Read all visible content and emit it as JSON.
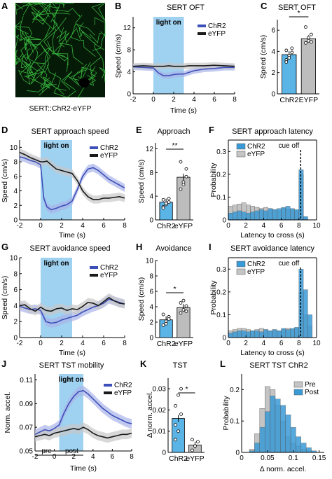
{
  "panels": {
    "A": {
      "letter": "A",
      "caption": "SERT::ChR2-eYFP"
    },
    "B": {
      "letter": "B",
      "title": "SERT OFT",
      "light": "light on",
      "xlabel": "Time (s)",
      "ylabel": "Speed (cm/s)",
      "xticks": [
        "-2",
        "0",
        "2",
        "4",
        "6",
        "8"
      ],
      "yticks": [
        "0",
        "4",
        "8",
        "12"
      ],
      "legend": [
        "ChR2",
        "eYFP"
      ]
    },
    "C": {
      "letter": "C",
      "title": "SERT OFT",
      "ylabel": "Speed (cm/s)",
      "yticks": [
        "0",
        "2",
        "4",
        "6"
      ],
      "bars": [
        "ChR2",
        "EYFP"
      ],
      "sig": "*"
    },
    "D": {
      "letter": "D",
      "title": "SERT approach speed",
      "light": "light on",
      "xlabel": "Time (s)",
      "ylabel": "Speed (cm/s)",
      "xticks": [
        "-2",
        "0",
        "2",
        "4",
        "6",
        "8"
      ],
      "yticks": [
        "0",
        "2",
        "4",
        "6",
        "8",
        "10"
      ],
      "legend": [
        "ChR2",
        "eYFP"
      ]
    },
    "E": {
      "letter": "E",
      "title": "Approach",
      "ylabel": "Speed (cm/s)",
      "yticks": [
        "0",
        "4",
        "8",
        "12"
      ],
      "bars": [
        "ChR2",
        "eYFP"
      ],
      "sig": "**"
    },
    "F": {
      "letter": "F",
      "title": "SERT approach latency",
      "xlabel": "Latency to cross (s)",
      "ylabel": "Probability",
      "xticks": [
        "0",
        "2",
        "4",
        "6",
        "8",
        "10"
      ],
      "yticks": [
        "0",
        "0.1",
        "0.2",
        "0.3"
      ],
      "legend": [
        "ChR2",
        "eYFP"
      ],
      "cue": "cue off"
    },
    "G": {
      "letter": "G",
      "title": "SERT avoidance speed",
      "light": "light on",
      "xlabel": "Time (s)",
      "ylabel": "Speed (cm/s)",
      "xticks": [
        "-2",
        "0",
        "2",
        "4",
        "6",
        "8"
      ],
      "yticks": [
        "0",
        "2",
        "4",
        "6",
        "8",
        "10"
      ],
      "legend": [
        "ChR2",
        "eYFP"
      ]
    },
    "H": {
      "letter": "H",
      "title": "Avoidance",
      "ylabel": "Speed (cm/s)",
      "yticks": [
        "0",
        "2",
        "4",
        "6",
        "8",
        "10"
      ],
      "bars": [
        "ChR2",
        "eYFP"
      ],
      "sig": "*"
    },
    "I": {
      "letter": "I",
      "title": "SERT avoidance latency",
      "xlabel": "Latency to cross (s)",
      "ylabel": "Probability",
      "xticks": [
        "0",
        "2",
        "4",
        "6",
        "8",
        "10"
      ],
      "yticks": [
        "0",
        "0.1",
        "0.2",
        "0.3"
      ],
      "legend": [
        "ChR2",
        "eYFP"
      ],
      "cue": "cue off"
    },
    "J": {
      "letter": "J",
      "title": "SERT TST mobility",
      "light": "light on",
      "xlabel": "Time (s)",
      "ylabel": "Norm. accel.",
      "xticks": [
        "-2",
        "0",
        "2",
        "4",
        "6",
        "8"
      ],
      "yticks": [
        "0.05",
        "0.07",
        "0.09",
        "0.11"
      ],
      "legend": [
        "ChR2",
        "eYFP"
      ],
      "pre": "pre",
      "post": "post"
    },
    "K": {
      "letter": "K",
      "title": "TST",
      "ylabel": "Δ norm. accel.",
      "yticks": [
        "0",
        "0.01",
        "0.02",
        "0.03"
      ],
      "bars": [
        "ChR2",
        "eYFP"
      ],
      "sig": "*"
    },
    "L": {
      "letter": "L",
      "title": "SERT TST ChR2",
      "xlabel": "Δ norm. accel.",
      "ylabel": "Probability",
      "xticks": [
        "0",
        "0.05",
        "0.1",
        "0.15"
      ],
      "yticks": [
        "0",
        "0.1",
        "0.2"
      ],
      "legend": [
        "Pre",
        "Post"
      ]
    }
  },
  "colors": {
    "chr2": "#3d4fb8",
    "eyfp": "#1a1a1a",
    "light": "#9fd1f0",
    "bar_chr2": "#5ab4e5",
    "bar_eyfp": "#bdbdbd",
    "hist_chr2": "#3a9ad6",
    "hist_eyfp": "#c4c4c4",
    "band_chr2": "#a9b3e8",
    "band_eyfp": "#c8c8c8"
  },
  "chart_data": [
    {
      "id": "B",
      "type": "line",
      "x_range": [
        -2,
        8
      ],
      "ylim": [
        0,
        14
      ],
      "light_on": [
        0,
        3
      ],
      "x": [
        -2,
        -1,
        0,
        0.5,
        1,
        1.5,
        2,
        2.5,
        3,
        3.5,
        4,
        5,
        6,
        7,
        8
      ],
      "series": [
        {
          "name": "ChR2",
          "values": [
            4.9,
            4.8,
            4.7,
            3.8,
            3.3,
            3.3,
            3.5,
            3.6,
            3.6,
            3.9,
            4.2,
            4.5,
            4.6,
            4.8,
            4.8
          ]
        },
        {
          "name": "eYFP",
          "values": [
            5.0,
            5.1,
            5.0,
            5.0,
            5.0,
            5.1,
            5.0,
            5.0,
            5.0,
            5.1,
            5.1,
            5.1,
            5.2,
            5.1,
            5.0
          ]
        }
      ]
    },
    {
      "id": "C",
      "type": "bar",
      "categories": [
        "ChR2",
        "EYFP"
      ],
      "values": [
        3.7,
        5.2
      ],
      "ylim": [
        0,
        7
      ],
      "points": [
        [
          3.2,
          3.6,
          3.9,
          4.1,
          3.4,
          4.3,
          3.0
        ],
        [
          4.8,
          5.0,
          5.6,
          6.3,
          5.3,
          4.9
        ]
      ]
    },
    {
      "id": "D",
      "type": "line",
      "x_range": [
        -2,
        8
      ],
      "ylim": [
        0,
        11
      ],
      "light_on": [
        0,
        3
      ],
      "x": [
        -2,
        -1.5,
        -1,
        -0.5,
        0,
        0.3,
        0.6,
        1,
        1.5,
        2,
        2.5,
        3,
        3.5,
        4,
        4.5,
        5,
        5.5,
        6,
        6.5,
        7,
        7.5,
        8
      ],
      "series": [
        {
          "name": "ChR2",
          "values": [
            8.7,
            8.5,
            8.2,
            8.0,
            7.6,
            3.0,
            1.8,
            1.4,
            1.6,
            1.9,
            2.1,
            2.6,
            4.2,
            6.0,
            7.0,
            7.2,
            6.8,
            6.2,
            5.6,
            5.2,
            4.8,
            4.4
          ]
        },
        {
          "name": "eYFP",
          "values": [
            9.3,
            9.0,
            8.6,
            8.3,
            8.0,
            8.0,
            8.1,
            7.6,
            7.0,
            6.8,
            6.6,
            6.4,
            5.4,
            4.0,
            3.2,
            2.8,
            2.8,
            3.0,
            3.0,
            3.1,
            3.2,
            3.0
          ]
        }
      ]
    },
    {
      "id": "E",
      "type": "bar",
      "categories": [
        "ChR2",
        "eYFP"
      ],
      "values": [
        3.0,
        7.2
      ],
      "ylim": [
        0,
        13
      ],
      "points": [
        [
          2.2,
          2.6,
          3.0,
          3.4,
          2.8,
          3.6,
          2.0
        ],
        [
          5.2,
          6.4,
          8.6,
          9.8,
          6.0,
          7.3
        ]
      ]
    },
    {
      "id": "F",
      "type": "histogram",
      "bin_width": 0.5,
      "x_range": [
        0,
        10
      ],
      "ylim": [
        0,
        0.35
      ],
      "cue_off": 8.2,
      "series": [
        {
          "name": "ChR2",
          "values": [
            0.03,
            0.035,
            0.04,
            0.035,
            0.03,
            0.035,
            0.04,
            0.045,
            0.04,
            0.05,
            0.045,
            0.05,
            0.055,
            0.06,
            0.05,
            0.045,
            0.22,
            0.015,
            0,
            0
          ]
        },
        {
          "name": "eYFP",
          "values": [
            0.06,
            0.065,
            0.07,
            0.075,
            0.065,
            0.06,
            0.055,
            0.05,
            0.055,
            0.05,
            0.045,
            0.04,
            0.05,
            0.045,
            0.045,
            0.04,
            0.2,
            0.01,
            0,
            0
          ]
        }
      ]
    },
    {
      "id": "G",
      "type": "line",
      "x_range": [
        -2,
        8
      ],
      "ylim": [
        0,
        10
      ],
      "light_on": [
        0,
        3
      ],
      "x": [
        -2,
        -1.5,
        -1,
        -0.5,
        0,
        0.5,
        1,
        1.5,
        2,
        2.5,
        3,
        3.5,
        4,
        4.5,
        5,
        5.5,
        6,
        6.5,
        7,
        7.5,
        8
      ],
      "series": [
        {
          "name": "ChR2",
          "values": [
            3.9,
            3.7,
            3.5,
            3.6,
            3.4,
            2.0,
            1.8,
            1.9,
            2.2,
            2.4,
            2.6,
            2.8,
            3.2,
            3.5,
            3.8,
            4.0,
            4.3,
            4.8,
            4.6,
            4.4,
            4.2
          ]
        },
        {
          "name": "eYFP",
          "values": [
            4.0,
            4.1,
            3.6,
            3.3,
            3.8,
            3.4,
            3.3,
            3.6,
            3.7,
            3.4,
            3.6,
            3.5,
            3.9,
            4.4,
            4.3,
            4.0,
            4.5,
            5.0,
            4.6,
            4.3,
            4.2
          ]
        }
      ]
    },
    {
      "id": "H",
      "type": "bar",
      "categories": [
        "ChR2",
        "eYFP"
      ],
      "values": [
        2.3,
        3.9
      ],
      "ylim": [
        0,
        10
      ],
      "points": [
        [
          1.6,
          2.1,
          2.7,
          3.0,
          1.8,
          2.4
        ],
        [
          3.2,
          3.6,
          4.1,
          4.5,
          4.8,
          3.4
        ]
      ]
    },
    {
      "id": "I",
      "type": "histogram",
      "bin_width": 0.5,
      "x_range": [
        0,
        10
      ],
      "ylim": [
        0,
        0.35
      ],
      "cue_off": 8.2,
      "series": [
        {
          "name": "ChR2",
          "values": [
            0.02,
            0.025,
            0.03,
            0.03,
            0.025,
            0.03,
            0.03,
            0.025,
            0.035,
            0.03,
            0.035,
            0.03,
            0.04,
            0.035,
            0.04,
            0.045,
            0.3,
            0.21,
            0.1,
            0
          ]
        },
        {
          "name": "eYFP",
          "values": [
            0.03,
            0.035,
            0.04,
            0.04,
            0.035,
            0.03,
            0.035,
            0.04,
            0.035,
            0.03,
            0.035,
            0.03,
            0.035,
            0.04,
            0.035,
            0.04,
            0.2,
            0.1,
            0.05,
            0
          ]
        }
      ]
    },
    {
      "id": "J",
      "type": "line",
      "x_range": [
        -2,
        8
      ],
      "ylim": [
        0.05,
        0.115
      ],
      "light_on": [
        0.5,
        3
      ],
      "x": [
        -2,
        -1.5,
        -1,
        -0.5,
        0,
        0.5,
        1,
        1.5,
        2,
        2.5,
        3,
        3.5,
        4,
        4.5,
        5,
        5.5,
        6,
        6.5,
        7,
        7.5,
        8
      ],
      "series": [
        {
          "name": "ChR2",
          "values": [
            0.064,
            0.066,
            0.068,
            0.067,
            0.069,
            0.072,
            0.082,
            0.09,
            0.096,
            0.1,
            0.101,
            0.098,
            0.094,
            0.09,
            0.086,
            0.083,
            0.08,
            0.078,
            0.076,
            0.074,
            0.073
          ]
        },
        {
          "name": "eYFP",
          "values": [
            0.062,
            0.063,
            0.064,
            0.063,
            0.065,
            0.066,
            0.067,
            0.068,
            0.069,
            0.068,
            0.07,
            0.068,
            0.065,
            0.063,
            0.062,
            0.061,
            0.062,
            0.063,
            0.064,
            0.064,
            0.065
          ]
        }
      ]
    },
    {
      "id": "K",
      "type": "bar",
      "categories": [
        "ChR2",
        "eYFP"
      ],
      "values": [
        0.016,
        0.0035
      ],
      "ylim": [
        0,
        0.035
      ],
      "points": [
        [
          0.006,
          0.01,
          0.018,
          0.022,
          0.027,
          0.03,
          0.013
        ],
        [
          0.001,
          0.003,
          0.005,
          0.006
        ]
      ]
    },
    {
      "id": "L",
      "type": "histogram",
      "bin_width": 0.01,
      "x_range": [
        0,
        0.16
      ],
      "ylim": [
        0,
        0.25
      ],
      "x": [
        0.02,
        0.03,
        0.04,
        0.05,
        0.06,
        0.07,
        0.08,
        0.09,
        0.1,
        0.11,
        0.12,
        0.13,
        0.14
      ],
      "series": [
        {
          "name": "Pre",
          "values": [
            0.01,
            0.06,
            0.14,
            0.21,
            0.2,
            0.15,
            0.1,
            0.05,
            0.03,
            0.02,
            0.01,
            0.005,
            0.002
          ]
        },
        {
          "name": "Post",
          "values": [
            0.005,
            0.03,
            0.08,
            0.13,
            0.18,
            0.17,
            0.15,
            0.12,
            0.08,
            0.05,
            0.03,
            0.015,
            0.005
          ]
        }
      ]
    }
  ]
}
